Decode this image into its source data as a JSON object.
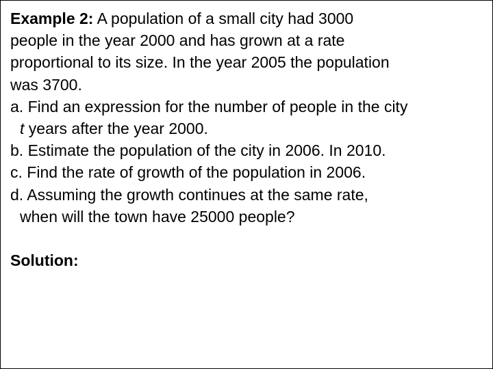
{
  "heading": "Example 2:",
  "intro_1": " A population of a small city had 3000",
  "intro_2": "people in the year 2000 and has grown at a rate",
  "intro_3": "proportional to its size. In the year 2005 the population",
  "intro_4": "was 3700.",
  "a_1": "a. Find an expression for the number of people in the city",
  "a_var": "t",
  "a_2": " years after the year 2000.",
  "b": "b. Estimate the population of the city in 2006. In 2010.",
  "c": "c. Find the rate of growth of the population in 2006.",
  "d_1": "d. Assuming the growth continues at the same rate,",
  "d_2": "when will the town have 25000 people?",
  "solution": "Solution:"
}
